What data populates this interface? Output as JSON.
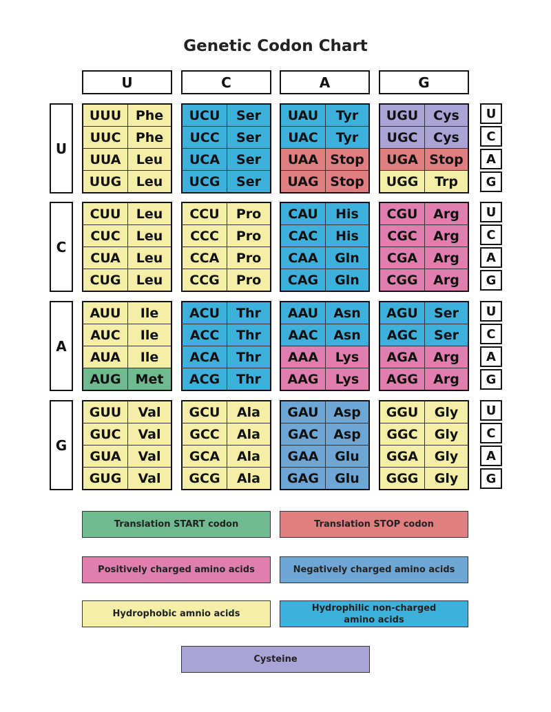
{
  "title": "Genetic Codon Chart",
  "colors": {
    "hydrophobic": "#f4eea6",
    "hydrophilic": "#3db0dc",
    "negative": "#6ea7d6",
    "positive": "#e07fae",
    "stop": "#e07e80",
    "cysteine": "#aaa4d6",
    "start": "#6fba8f"
  },
  "column_headers": [
    "U",
    "C",
    "A",
    "G"
  ],
  "row_headers": [
    "U",
    "C",
    "A",
    "G"
  ],
  "third_base_labels": [
    "U",
    "C",
    "A",
    "G"
  ],
  "blocks": [
    [
      [
        [
          "UUU",
          "Phe",
          "hydrophobic"
        ],
        [
          "UUC",
          "Phe",
          "hydrophobic"
        ],
        [
          "UUA",
          "Leu",
          "hydrophobic"
        ],
        [
          "UUG",
          "Leu",
          "hydrophobic"
        ]
      ],
      [
        [
          "UCU",
          "Ser",
          "hydrophilic"
        ],
        [
          "UCC",
          "Ser",
          "hydrophilic"
        ],
        [
          "UCA",
          "Ser",
          "hydrophilic"
        ],
        [
          "UCG",
          "Ser",
          "hydrophilic"
        ]
      ],
      [
        [
          "UAU",
          "Tyr",
          "hydrophilic"
        ],
        [
          "UAC",
          "Tyr",
          "hydrophilic"
        ],
        [
          "UAA",
          "Stop",
          "stop"
        ],
        [
          "UAG",
          "Stop",
          "stop"
        ]
      ],
      [
        [
          "UGU",
          "Cys",
          "cysteine"
        ],
        [
          "UGC",
          "Cys",
          "cysteine"
        ],
        [
          "UGA",
          "Stop",
          "stop"
        ],
        [
          "UGG",
          "Trp",
          "hydrophobic"
        ]
      ]
    ],
    [
      [
        [
          "CUU",
          "Leu",
          "hydrophobic"
        ],
        [
          "CUC",
          "Leu",
          "hydrophobic"
        ],
        [
          "CUA",
          "Leu",
          "hydrophobic"
        ],
        [
          "CUG",
          "Leu",
          "hydrophobic"
        ]
      ],
      [
        [
          "CCU",
          "Pro",
          "hydrophobic"
        ],
        [
          "CCC",
          "Pro",
          "hydrophobic"
        ],
        [
          "CCA",
          "Pro",
          "hydrophobic"
        ],
        [
          "CCG",
          "Pro",
          "hydrophobic"
        ]
      ],
      [
        [
          "CAU",
          "His",
          "hydrophilic"
        ],
        [
          "CAC",
          "His",
          "hydrophilic"
        ],
        [
          "CAA",
          "Gln",
          "hydrophilic"
        ],
        [
          "CAG",
          "Gln",
          "hydrophilic"
        ]
      ],
      [
        [
          "CGU",
          "Arg",
          "positive"
        ],
        [
          "CGC",
          "Arg",
          "positive"
        ],
        [
          "CGA",
          "Arg",
          "positive"
        ],
        [
          "CGG",
          "Arg",
          "positive"
        ]
      ]
    ],
    [
      [
        [
          "AUU",
          "Ile",
          "hydrophobic"
        ],
        [
          "AUC",
          "Ile",
          "hydrophobic"
        ],
        [
          "AUA",
          "Ile",
          "hydrophobic"
        ],
        [
          "AUG",
          "Met",
          "start"
        ]
      ],
      [
        [
          "ACU",
          "Thr",
          "hydrophilic"
        ],
        [
          "ACC",
          "Thr",
          "hydrophilic"
        ],
        [
          "ACA",
          "Thr",
          "hydrophilic"
        ],
        [
          "ACG",
          "Thr",
          "hydrophilic"
        ]
      ],
      [
        [
          "AAU",
          "Asn",
          "hydrophilic"
        ],
        [
          "AAC",
          "Asn",
          "hydrophilic"
        ],
        [
          "AAA",
          "Lys",
          "positive"
        ],
        [
          "AAG",
          "Lys",
          "positive"
        ]
      ],
      [
        [
          "AGU",
          "Ser",
          "hydrophilic"
        ],
        [
          "AGC",
          "Ser",
          "hydrophilic"
        ],
        [
          "AGA",
          "Arg",
          "positive"
        ],
        [
          "AGG",
          "Arg",
          "positive"
        ]
      ]
    ],
    [
      [
        [
          "GUU",
          "Val",
          "hydrophobic"
        ],
        [
          "GUC",
          "Val",
          "hydrophobic"
        ],
        [
          "GUA",
          "Val",
          "hydrophobic"
        ],
        [
          "GUG",
          "Val",
          "hydrophobic"
        ]
      ],
      [
        [
          "GCU",
          "Ala",
          "hydrophobic"
        ],
        [
          "GCC",
          "Ala",
          "hydrophobic"
        ],
        [
          "GCA",
          "Ala",
          "hydrophobic"
        ],
        [
          "GCG",
          "Ala",
          "hydrophobic"
        ]
      ],
      [
        [
          "GAU",
          "Asp",
          "negative"
        ],
        [
          "GAC",
          "Asp",
          "negative"
        ],
        [
          "GAA",
          "Glu",
          "negative"
        ],
        [
          "GAG",
          "Glu",
          "negative"
        ]
      ],
      [
        [
          "GGU",
          "Gly",
          "hydrophobic"
        ],
        [
          "GGC",
          "Gly",
          "hydrophobic"
        ],
        [
          "GGA",
          "Gly",
          "hydrophobic"
        ],
        [
          "GGG",
          "Gly",
          "hydrophobic"
        ]
      ]
    ]
  ],
  "legend": [
    {
      "label": "Translation START codon",
      "type": "start"
    },
    {
      "label": "Translation STOP codon",
      "type": "stop"
    },
    {
      "label": "Positively charged amino acids",
      "type": "positive"
    },
    {
      "label": "Negatively charged amino acids",
      "type": "negative"
    },
    {
      "label": "Hydrophobic amnio acids",
      "type": "hydrophobic"
    },
    {
      "label": "Hydrophilic non-charged amino acids",
      "type": "hydrophilic"
    },
    {
      "label": "Cysteine",
      "type": "cysteine"
    }
  ]
}
